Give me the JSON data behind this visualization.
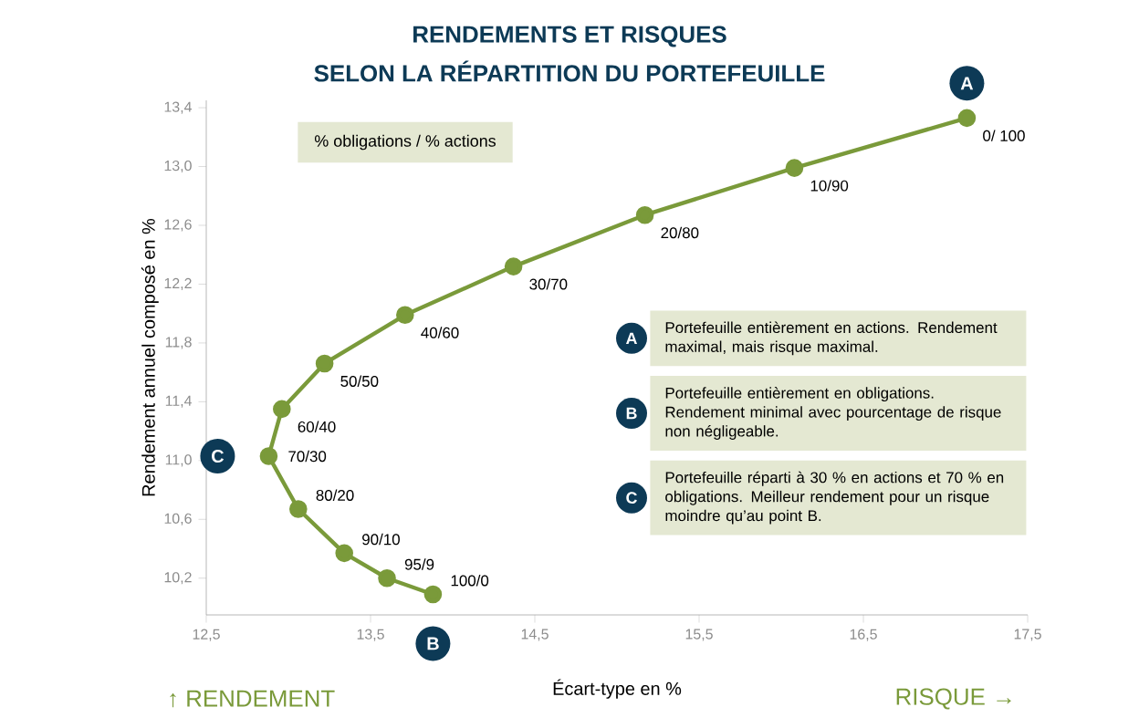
{
  "chart_data": {
    "type": "line",
    "title": "RENDEMENTS ET RISQUES",
    "subtitle": "SELON LA RÉPARTITION DU PORTEFEUILLE",
    "xlabel": "Écart-type en %",
    "ylabel": "Rendement annuel composé en %",
    "x": [
      17.13,
      16.08,
      15.17,
      14.37,
      13.71,
      13.22,
      12.96,
      12.88,
      13.06,
      13.34,
      13.6,
      13.88
    ],
    "series": [
      {
        "color": "#7a9a3a",
        "values": [
          13.33,
          12.99,
          12.67,
          12.32,
          11.99,
          11.66,
          11.35,
          11.03,
          10.67,
          10.37,
          10.2,
          10.09
        ]
      }
    ],
    "marker": "circle",
    "xlim": [
      12.5,
      17.5
    ],
    "ylim": [
      9.95,
      13.45
    ],
    "xticks": [
      {
        "value": 12.5,
        "label": "12,5"
      },
      {
        "value": 13.5,
        "label": "13,5"
      },
      {
        "value": 14.5,
        "label": "14,5"
      },
      {
        "value": 15.5,
        "label": "15,5"
      },
      {
        "value": 16.5,
        "label": "16,5"
      },
      {
        "value": 17.5,
        "label": "17,5"
      }
    ],
    "yticks": [
      {
        "value": 10.2,
        "label": "10,2"
      },
      {
        "value": 10.6,
        "label": "10,6"
      },
      {
        "value": 11.0,
        "label": "11,0"
      },
      {
        "value": 11.4,
        "label": "11,4"
      },
      {
        "value": 11.8,
        "label": "11,8"
      },
      {
        "value": 12.2,
        "label": "12,2"
      },
      {
        "value": 12.6,
        "label": "12,6"
      },
      {
        "value": 13.0,
        "label": "13,0"
      },
      {
        "value": 13.4,
        "label": "13,4"
      }
    ],
    "annotations": [
      "% obligations / % actions",
      {
        "text": "0/ 100",
        "x": 17.13,
        "y": 13.33
      },
      {
        "text": "10/90",
        "x": 16.08,
        "y": 12.99
      },
      {
        "text": "20/80",
        "x": 15.17,
        "y": 12.67
      },
      {
        "text": "30/70",
        "x": 14.37,
        "y": 12.32
      },
      {
        "text": "40/60",
        "x": 13.71,
        "y": 11.99
      },
      {
        "text": "50/50",
        "x": 13.22,
        "y": 11.66
      },
      {
        "text": "60/40",
        "x": 12.96,
        "y": 11.35
      },
      {
        "text": "70/30",
        "x": 12.88,
        "y": 11.03
      },
      {
        "text": "80/20",
        "x": 13.06,
        "y": 10.67
      },
      {
        "text": "90/10",
        "x": 13.34,
        "y": 10.37
      },
      {
        "text": "95/9",
        "x": 13.6,
        "y": 10.2
      },
      {
        "text": "100/0",
        "x": 13.88,
        "y": 10.09
      },
      {
        "text": "A",
        "x": 17.13,
        "y": 13.33
      },
      {
        "text": "B",
        "x": 13.88,
        "y": 10.09
      },
      {
        "text": "C",
        "x": 12.88,
        "y": 11.03
      },
      "Portefeuille entièrement en actions. Rendement maximal, mais risque maximal.",
      "Portefeuille entièrement en obligations. Rendement minimal avec pourcentage de risque non négligeable.",
      "Portefeuille réparti à 30 % en actions et 70 % en obligations. Meilleur rendement pour un risque moindre qu’au point B.",
      "↑ RENDEMENT",
      "RISQUE →"
    ]
  }
}
